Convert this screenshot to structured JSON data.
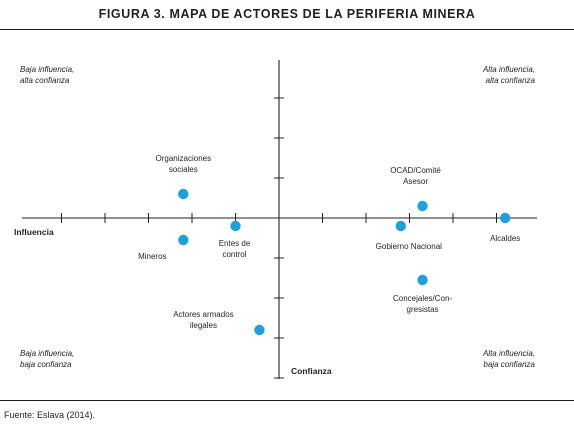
{
  "figure": {
    "title": "FIGURA 3. MAPA DE ACTORES DE LA PERIFERIA MINERA",
    "source": "Fuente: Eslava (2014)."
  },
  "chart_data": {
    "type": "scatter",
    "xlabel": "Influencia",
    "ylabel": "Confianza",
    "xlim": [
      -6,
      6
    ],
    "ylim": [
      -4,
      4
    ],
    "grid": false,
    "marker_color": "#1ba1dc",
    "axis_color": "#231f20",
    "quadrant_labels": {
      "top_left": [
        "Baja influencia,",
        "alta confianza"
      ],
      "top_right": [
        "Alta influencia,",
        "alta confianza"
      ],
      "bottom_left": [
        "Baja influencia,",
        "baja confianza"
      ],
      "bottom_right": [
        "Alta influencia,",
        "baja confianza"
      ]
    },
    "points": [
      {
        "label": [
          "Organizaciones",
          "sociales"
        ],
        "x": -2.2,
        "y": 0.6
      },
      {
        "label": [
          "Mineros"
        ],
        "x": -2.2,
        "y": -0.55
      },
      {
        "label": [
          "Entes de",
          "control"
        ],
        "x": -1.0,
        "y": -0.2
      },
      {
        "label": [
          "OCAD/Comité",
          "Asesor"
        ],
        "x": 3.3,
        "y": 0.3
      },
      {
        "label": [
          "Gobierno Nacional"
        ],
        "x": 2.8,
        "y": -0.2
      },
      {
        "label": [
          "Alcaldes"
        ],
        "x": 5.2,
        "y": 0.0
      },
      {
        "label": [
          "Concejales/Con-",
          "gresistas"
        ],
        "x": 3.3,
        "y": -1.55
      },
      {
        "label": [
          "Actores armados",
          "ilegales"
        ],
        "x": -0.45,
        "y": -2.8
      }
    ]
  }
}
